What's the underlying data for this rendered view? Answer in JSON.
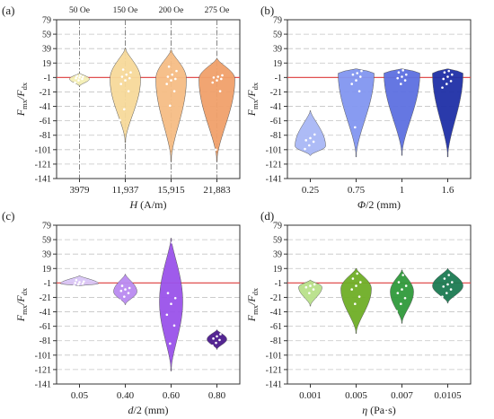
{
  "colors": {
    "axis": "#333333",
    "grid": "#c4c4c4",
    "reference": "#e05050",
    "vline": "#777777",
    "point": "#ffffff"
  },
  "chart_data": [
    {
      "type": "violin",
      "panel": "(a)",
      "ylabel": "F_mx/F_dx",
      "ylabel_main": "F",
      "ylabel_sub1": "mx",
      "ylabel_sep": "/F",
      "ylabel_sub2": "dx",
      "xlabel_italic": "H",
      "xlabel_rest": " (A/m)",
      "ylim": [
        -141,
        79
      ],
      "yticks": [
        79,
        59,
        39,
        19,
        -1,
        -21,
        -41,
        -61,
        -81,
        -101,
        -121,
        -141
      ],
      "reference_line": -1,
      "grid": "horizontal dashed",
      "categories": [
        "3979",
        "11,937",
        "15,915",
        "21,883"
      ],
      "annotations": [
        "50 Oe",
        "150 Oe",
        "200 Oe",
        "275 Oe"
      ],
      "colors": [
        "#f3eeb4",
        "#f7d99a",
        "#f5bd85",
        "#f0a06a"
      ],
      "series": [
        {
          "min": -13,
          "max": 5,
          "mode": -3,
          "spread": 11,
          "points": [
            -8,
            -5,
            -3,
            -2,
            -1,
            0,
            1,
            2
          ]
        },
        {
          "min": -91,
          "max": 39,
          "mode": -3,
          "spread": 17,
          "points": [
            -60,
            -45,
            -20,
            -10,
            -5,
            -2,
            0,
            3,
            6,
            10
          ]
        },
        {
          "min": -117,
          "max": 37,
          "mode": -3,
          "spread": 17,
          "points": [
            -95,
            -40,
            -20,
            -10,
            -5,
            -3,
            0,
            3,
            8,
            14
          ]
        },
        {
          "min": -117,
          "max": 25,
          "mode": -3,
          "spread": 20,
          "points": [
            -110,
            -101,
            -20,
            -8,
            -5,
            -3,
            -1,
            0,
            2
          ]
        }
      ]
    },
    {
      "type": "violin",
      "panel": "(b)",
      "ylabel": "F_mx/F_dx",
      "ylabel_main": "F",
      "ylabel_sub1": "mx",
      "ylabel_sep": "/F",
      "ylabel_sub2": "dx",
      "xlabel_italic": "Φ",
      "xlabel_rest": "/2 (mm)",
      "ylim": [
        -141,
        79
      ],
      "yticks": [
        79,
        59,
        39,
        19,
        -1,
        -21,
        -41,
        -61,
        -81,
        -101,
        -121,
        -141
      ],
      "reference_line": -1,
      "grid": "horizontal dashed",
      "categories": [
        "0.25",
        "0.75",
        "1",
        "1.6"
      ],
      "colors": [
        "#a9b7f6",
        "#8296f0",
        "#5d70e0",
        "#1f2fa6"
      ],
      "series": [
        {
          "min": -109,
          "max": -47,
          "mode": -96,
          "spread": 17,
          "points": [
            -100,
            -95,
            -90,
            -88,
            -85,
            -80
          ]
        },
        {
          "min": -111,
          "max": 11,
          "mode": 5,
          "spread": 20,
          "points": [
            -105,
            -70,
            -20,
            -10,
            -5,
            0,
            3,
            5,
            8
          ]
        },
        {
          "min": -109,
          "max": 11,
          "mode": 5,
          "spread": 20,
          "points": [
            -100,
            -10,
            -5,
            -2,
            0,
            3,
            6,
            9
          ]
        },
        {
          "min": -111,
          "max": 11,
          "mode": 5,
          "spread": 17,
          "points": [
            -15,
            -10,
            -6,
            -3,
            0,
            3,
            6,
            8
          ]
        }
      ]
    },
    {
      "type": "violin",
      "panel": "(c)",
      "ylabel": "F_mx/F_dx",
      "ylabel_main": "F",
      "ylabel_sub1": "mx",
      "ylabel_sep": "/F",
      "ylabel_sub2": "dx",
      "xlabel_italic": "d",
      "xlabel_rest": "/2 (mm)",
      "ylim": [
        -141,
        79
      ],
      "yticks": [
        79,
        59,
        39,
        19,
        -1,
        -21,
        -41,
        -61,
        -81,
        -101,
        -121,
        -141
      ],
      "reference_line": -1,
      "grid": "horizontal dashed",
      "categories": [
        "0.05",
        "0.40",
        "0.60",
        "0.80"
      ],
      "colors": [
        "#d9c6f7",
        "#b98af0",
        "#9a52ea",
        "#4b1a8c"
      ],
      "series": [
        {
          "min": -5,
          "max": 9,
          "mode": -2,
          "spread": 21,
          "points": [
            -5,
            -3,
            -2,
            -1,
            0,
            1,
            3
          ]
        },
        {
          "min": -31,
          "max": 11,
          "mode": -13,
          "spread": 13,
          "points": [
            -25,
            -20,
            -15,
            -12,
            -10,
            -8,
            -5
          ]
        },
        {
          "min": -123,
          "max": 61,
          "mode": -27,
          "spread": 13,
          "points": [
            -105,
            -85,
            -60,
            -45,
            -30,
            -22,
            -15,
            55
          ]
        },
        {
          "min": -93,
          "max": -66,
          "mode": -79,
          "spread": 11,
          "points": [
            -88,
            -84,
            -80,
            -78,
            -75,
            -72
          ]
        }
      ]
    },
    {
      "type": "violin",
      "panel": "(d)",
      "ylabel": "F_mx/F_dx",
      "ylabel_main": "F",
      "ylabel_sub1": "mx",
      "ylabel_sep": "/F",
      "ylabel_sub2": "dx",
      "xlabel_italic": "η",
      "xlabel_rest": " (Pa·s)",
      "ylim": [
        -141,
        79
      ],
      "yticks": [
        79,
        59,
        39,
        19,
        -1,
        -21,
        -41,
        -61,
        -81,
        -101,
        -121,
        -141
      ],
      "reference_line": -1,
      "grid": "horizontal dashed",
      "categories": [
        "0.001",
        "0.005",
        "0.007",
        "0.0105"
      ],
      "colors": [
        "#b8e08a",
        "#6fae26",
        "#2f9a3b",
        "#1b7a52"
      ],
      "series": [
        {
          "min": -33,
          "max": 3,
          "mode": -7,
          "spread": 13,
          "points": [
            -25,
            -15,
            -10,
            -7,
            -5,
            -3
          ]
        },
        {
          "min": -71,
          "max": 19,
          "mode": -9,
          "spread": 17,
          "points": [
            -60,
            -30,
            -20,
            -10,
            -5,
            0,
            5,
            12
          ]
        },
        {
          "min": -57,
          "max": 17,
          "mode": -13,
          "spread": 13,
          "points": [
            -40,
            -30,
            -22,
            -15,
            -10,
            -5,
            0,
            10
          ]
        },
        {
          "min": -29,
          "max": 19,
          "mode": -5,
          "spread": 17,
          "points": [
            -20,
            -15,
            -10,
            -6,
            -3,
            0,
            5,
            10
          ]
        }
      ]
    }
  ]
}
